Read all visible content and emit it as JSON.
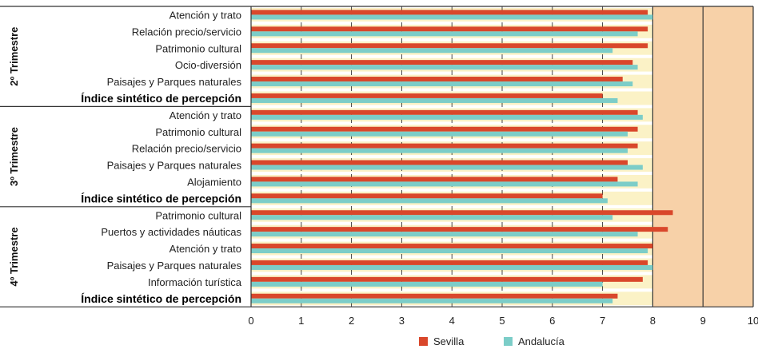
{
  "chart_data": {
    "type": "bar",
    "orientation": "horizontal",
    "xlim": [
      0,
      10
    ],
    "xticks": [
      "0",
      "1",
      "2",
      "3",
      "4",
      "5",
      "6",
      "7",
      "8",
      "9",
      "10"
    ],
    "highlight_range": [
      8,
      10
    ],
    "grid": true,
    "legend_position": "bottom",
    "colors": {
      "Sevilla": "#d9472b",
      "Andalucía": "#7ccdc8",
      "highlight_band": "#f7d1a8",
      "row_band": "#fbf2c6"
    },
    "series": [
      {
        "name": "Sevilla"
      },
      {
        "name": "Andalucía"
      }
    ],
    "groups": [
      {
        "label": "2º Trimestre",
        "rows": [
          {
            "category": "Atención y trato",
            "values": [
              7.9,
              8.0
            ],
            "bold": false
          },
          {
            "category": "Relación precio/servicio",
            "values": [
              7.9,
              7.7
            ],
            "bold": false
          },
          {
            "category": "Patrimonio cultural",
            "values": [
              7.9,
              7.2
            ],
            "bold": false
          },
          {
            "category": "Ocio-diversión",
            "values": [
              7.6,
              7.7
            ],
            "bold": false
          },
          {
            "category": "Paisajes y Parques naturales",
            "values": [
              7.4,
              7.6
            ],
            "bold": false
          },
          {
            "category": "Índice sintético de percepción",
            "values": [
              7.0,
              7.3
            ],
            "bold": true
          }
        ]
      },
      {
        "label": "3º Trimestre",
        "rows": [
          {
            "category": "Atención y trato",
            "values": [
              7.7,
              7.8
            ],
            "bold": false
          },
          {
            "category": "Patrimonio cultural",
            "values": [
              7.7,
              7.5
            ],
            "bold": false
          },
          {
            "category": "Relación precio/servicio",
            "values": [
              7.7,
              7.5
            ],
            "bold": false
          },
          {
            "category": "Paisajes y Parques naturales",
            "values": [
              7.5,
              7.8
            ],
            "bold": false
          },
          {
            "category": "Alojamiento",
            "values": [
              7.3,
              7.7
            ],
            "bold": false
          },
          {
            "category": "Índice sintético de percepción",
            "values": [
              7.0,
              7.1
            ],
            "bold": true
          }
        ]
      },
      {
        "label": "4º Trimestre",
        "rows": [
          {
            "category": "Patrimonio cultural",
            "values": [
              8.4,
              7.2
            ],
            "bold": false
          },
          {
            "category": "Puertos y actividades náuticas",
            "values": [
              8.3,
              7.7
            ],
            "bold": false
          },
          {
            "category": "Atención y trato",
            "values": [
              8.0,
              7.9
            ],
            "bold": false
          },
          {
            "category": "Paisajes y Parques naturales",
            "values": [
              7.9,
              8.0
            ],
            "bold": false
          },
          {
            "category": "Información turística",
            "values": [
              7.8,
              7.0
            ],
            "bold": false
          },
          {
            "category": "Índice sintético de percepción",
            "values": [
              7.3,
              7.2
            ],
            "bold": true
          }
        ]
      }
    ]
  }
}
